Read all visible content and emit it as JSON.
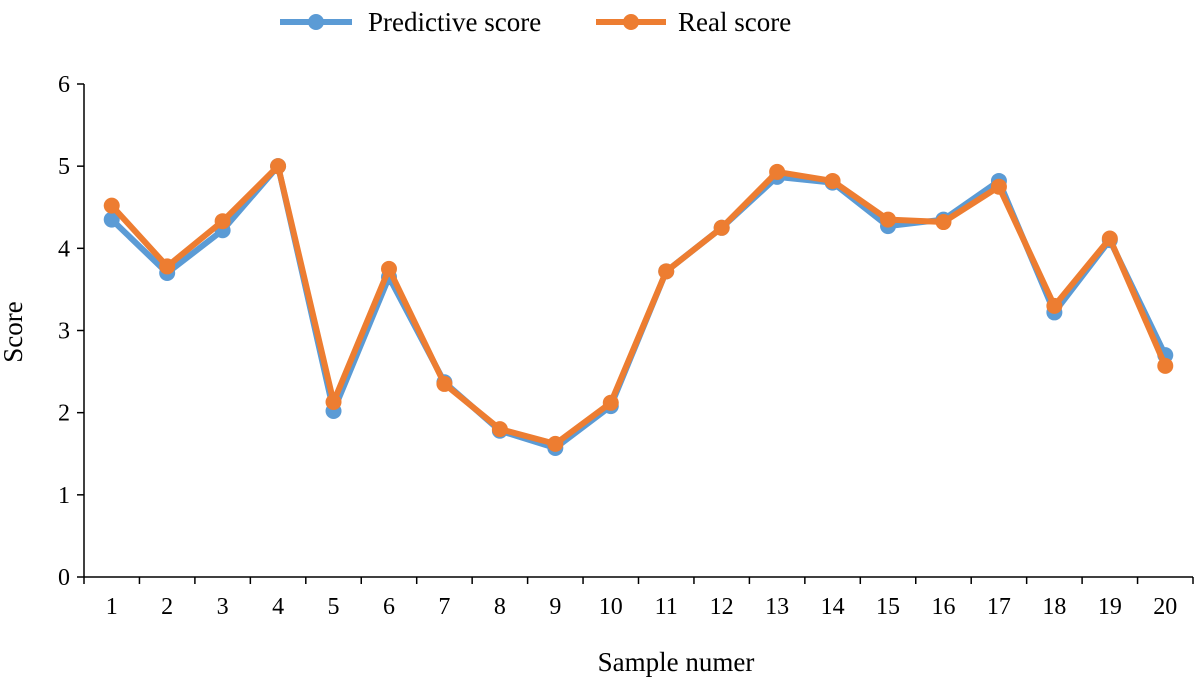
{
  "chart_data": {
    "type": "line",
    "title": "",
    "xlabel": "Sample numer",
    "ylabel": "Score",
    "categories": [
      "1",
      "2",
      "3",
      "4",
      "5",
      "6",
      "7",
      "8",
      "9",
      "10",
      "11",
      "12",
      "13",
      "14",
      "15",
      "16",
      "17",
      "18",
      "19",
      "20"
    ],
    "ylim": [
      0,
      6
    ],
    "yticks": [
      "0",
      "1",
      "2",
      "3",
      "4",
      "5",
      "6"
    ],
    "grid": false,
    "legend_position": "top-center",
    "series": [
      {
        "name": "Predictive score",
        "color": "#5B9BD5",
        "values": [
          4.35,
          3.7,
          4.22,
          5.0,
          2.02,
          3.65,
          2.37,
          1.78,
          1.57,
          2.08,
          3.72,
          4.25,
          4.87,
          4.8,
          4.27,
          4.35,
          4.82,
          3.22,
          4.1,
          2.7
        ]
      },
      {
        "name": "Real score",
        "color": "#ED7D31",
        "values": [
          4.52,
          3.78,
          4.33,
          5.0,
          2.13,
          3.75,
          2.35,
          1.8,
          1.62,
          2.12,
          3.72,
          4.25,
          4.93,
          4.82,
          4.35,
          4.32,
          4.75,
          3.3,
          4.12,
          2.57
        ]
      }
    ]
  }
}
